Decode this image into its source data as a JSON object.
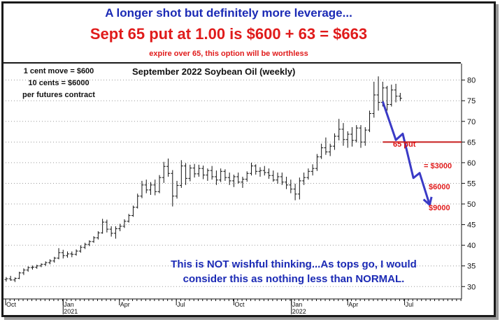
{
  "headline": {
    "line1": "A longer shot but definitely more leverage...",
    "line2": "Sept 65 put at 1.00 is $600 + 63 = $663",
    "line3": "expire over 65, this option will be worthless"
  },
  "notes": {
    "line1": "1 cent move = $600",
    "line2": "10 cents = $6000",
    "line3": "per futures contract"
  },
  "message": {
    "line1": "This is NOT wishful thinking...As tops go, I would",
    "line2": "consider this as nothing less than NORMAL."
  },
  "colors": {
    "headline_blue": "#1b2ab5",
    "headline_red": "#e01b1b",
    "bars": "#111111",
    "projection": "#3a3ac6",
    "put_line": "#c81e1e"
  },
  "chart_data": {
    "type": "ohlc",
    "title": "September 2022 Soybean Oil (weekly)",
    "xlabel": "",
    "ylabel": "",
    "ylim": [
      27,
      84
    ],
    "y_axis_side": "right",
    "y_ticks": [
      30,
      35,
      40,
      45,
      50,
      55,
      60,
      65,
      70,
      75,
      80
    ],
    "x_range": [
      "2020-10-01",
      "2022-09-30"
    ],
    "x_ticks": [
      {
        "date": "2020-10-01",
        "label": "Oct"
      },
      {
        "date": "2021-01-01",
        "label": "Jan"
      },
      {
        "date": "2021-04-01",
        "label": "Apr"
      },
      {
        "date": "2021-07-01",
        "label": "Jul"
      },
      {
        "date": "2021-10-01",
        "label": "Oct"
      },
      {
        "date": "2022-01-01",
        "label": "Jan"
      },
      {
        "date": "2022-04-01",
        "label": "Apr"
      },
      {
        "date": "2022-07-01",
        "label": "Jul"
      }
    ],
    "x_year_labels": [
      {
        "date": "2021-01-01",
        "label": "2021"
      },
      {
        "date": "2022-01-01",
        "label": "2022"
      }
    ],
    "series": [
      {
        "start": "2020-10-02",
        "interval_days": 7,
        "bars": [
          [
            31.7,
            32.3,
            31.2,
            31.9
          ],
          [
            31.9,
            32.6,
            31.4,
            31.6
          ],
          [
            31.6,
            32.2,
            31.1,
            32.0
          ],
          [
            32.0,
            33.6,
            31.8,
            33.3
          ],
          [
            33.3,
            34.4,
            32.8,
            34.0
          ],
          [
            34.0,
            34.9,
            33.6,
            34.6
          ],
          [
            34.6,
            35.1,
            34.1,
            34.7
          ],
          [
            34.7,
            35.3,
            34.3,
            35.0
          ],
          [
            35.0,
            35.6,
            34.7,
            35.4
          ],
          [
            35.4,
            36.1,
            35.0,
            35.8
          ],
          [
            35.8,
            36.6,
            35.4,
            36.2
          ],
          [
            36.2,
            37.2,
            35.8,
            36.9
          ],
          [
            36.9,
            39.3,
            36.6,
            38.2
          ],
          [
            38.2,
            38.9,
            36.8,
            37.5
          ],
          [
            37.5,
            38.5,
            37.0,
            37.9
          ],
          [
            37.9,
            38.5,
            37.1,
            37.8
          ],
          [
            37.8,
            39.0,
            37.5,
            38.6
          ],
          [
            38.6,
            40.0,
            38.2,
            39.5
          ],
          [
            39.5,
            40.6,
            39.1,
            40.2
          ],
          [
            40.2,
            41.2,
            39.8,
            40.9
          ],
          [
            40.9,
            42.2,
            40.6,
            41.8
          ],
          [
            41.8,
            43.4,
            41.4,
            43.0
          ],
          [
            43.0,
            46.4,
            42.8,
            45.6
          ],
          [
            45.6,
            46.2,
            43.1,
            43.9
          ],
          [
            43.9,
            44.6,
            42.1,
            42.9
          ],
          [
            42.9,
            44.6,
            41.6,
            44.0
          ],
          [
            44.0,
            45.2,
            43.4,
            44.6
          ],
          [
            44.6,
            46.3,
            44.2,
            45.8
          ],
          [
            45.8,
            47.6,
            45.5,
            47.2
          ],
          [
            47.2,
            49.6,
            46.9,
            49.2
          ],
          [
            49.2,
            52.5,
            48.9,
            51.9
          ],
          [
            51.9,
            55.6,
            51.4,
            54.6
          ],
          [
            54.6,
            55.9,
            52.6,
            53.4
          ],
          [
            53.4,
            55.3,
            52.2,
            54.6
          ],
          [
            54.6,
            55.9,
            52.1,
            53.0
          ],
          [
            53.0,
            57.0,
            52.6,
            56.4
          ],
          [
            56.4,
            60.2,
            55.1,
            59.1
          ],
          [
            59.1,
            61.0,
            56.6,
            57.4
          ],
          [
            57.4,
            58.2,
            49.4,
            51.9
          ],
          [
            51.9,
            55.6,
            51.3,
            54.5
          ],
          [
            54.5,
            60.6,
            53.9,
            59.2
          ],
          [
            59.2,
            59.9,
            54.6,
            56.2
          ],
          [
            56.2,
            59.5,
            55.5,
            58.7
          ],
          [
            58.7,
            59.7,
            56.4,
            57.3
          ],
          [
            57.3,
            59.5,
            56.6,
            58.6
          ],
          [
            58.6,
            59.3,
            56.0,
            57.0
          ],
          [
            57.0,
            58.6,
            55.6,
            58.1
          ],
          [
            58.1,
            59.2,
            55.9,
            56.6
          ],
          [
            56.6,
            58.1,
            54.6,
            55.8
          ],
          [
            55.8,
            58.6,
            55.3,
            57.9
          ],
          [
            57.9,
            58.4,
            55.6,
            56.4
          ],
          [
            56.4,
            57.6,
            54.6,
            55.6
          ],
          [
            55.6,
            57.1,
            54.1,
            56.6
          ],
          [
            56.6,
            57.6,
            54.9,
            55.3
          ],
          [
            55.3,
            56.6,
            53.9,
            56.0
          ],
          [
            56.0,
            57.9,
            55.4,
            57.4
          ],
          [
            57.4,
            60.0,
            56.9,
            59.2
          ],
          [
            59.2,
            59.6,
            57.1,
            57.9
          ],
          [
            57.9,
            58.9,
            56.6,
            58.1
          ],
          [
            58.1,
            59.2,
            56.9,
            57.6
          ],
          [
            57.6,
            58.6,
            56.1,
            56.9
          ],
          [
            56.9,
            58.1,
            55.4,
            55.8
          ],
          [
            55.8,
            57.6,
            54.9,
            56.6
          ],
          [
            56.6,
            57.6,
            54.6,
            55.3
          ],
          [
            55.3,
            56.6,
            53.6,
            54.6
          ],
          [
            54.6,
            55.9,
            52.6,
            53.6
          ],
          [
            53.6,
            54.9,
            50.9,
            52.4
          ],
          [
            52.4,
            56.4,
            51.1,
            55.6
          ],
          [
            55.6,
            57.6,
            54.6,
            56.4
          ],
          [
            56.4,
            58.6,
            55.9,
            57.9
          ],
          [
            57.9,
            59.6,
            56.9,
            58.6
          ],
          [
            58.6,
            62.1,
            58.0,
            61.4
          ],
          [
            61.4,
            64.6,
            60.9,
            63.6
          ],
          [
            63.6,
            66.1,
            61.9,
            62.6
          ],
          [
            62.6,
            64.6,
            61.6,
            64.0
          ],
          [
            64.0,
            67.1,
            63.1,
            66.4
          ],
          [
            66.4,
            70.6,
            65.4,
            68.1
          ],
          [
            68.1,
            69.6,
            64.1,
            65.6
          ],
          [
            65.6,
            67.6,
            63.6,
            66.9
          ],
          [
            66.9,
            68.6,
            63.9,
            65.4
          ],
          [
            65.4,
            69.1,
            64.9,
            68.4
          ],
          [
            68.4,
            69.1,
            63.6,
            65.0
          ],
          [
            65.0,
            68.6,
            64.1,
            67.9
          ],
          [
            67.9,
            72.6,
            67.4,
            71.9
          ],
          [
            71.9,
            79.6,
            70.9,
            76.4
          ],
          [
            76.4,
            80.9,
            72.6,
            74.6
          ],
          [
            74.6,
            79.6,
            73.6,
            78.1
          ],
          [
            78.1,
            78.6,
            72.6,
            74.1
          ],
          [
            74.1,
            78.9,
            73.6,
            77.6
          ],
          [
            77.6,
            79.1,
            74.6,
            76.1
          ],
          [
            76.1,
            76.9,
            74.9,
            75.6
          ]
        ]
      }
    ],
    "projection": {
      "name": "",
      "points": [
        {
          "date": "2022-05-27",
          "y": 74.8
        },
        {
          "date": "2022-06-17",
          "y": 65.5
        },
        {
          "date": "2022-06-28",
          "y": 67.0
        },
        {
          "date": "2022-07-15",
          "y": 56.3
        },
        {
          "date": "2022-07-25",
          "y": 57.5
        },
        {
          "date": "2022-08-10",
          "y": 49.8
        }
      ]
    },
    "annotations": [
      {
        "text": "65 put",
        "level": 65,
        "line_from": "2022-05-27",
        "line_to": "2022-09-30"
      },
      {
        "text": "= $3000",
        "level": 60
      },
      {
        "text": "$6000",
        "level": 55
      },
      {
        "text": "$9000",
        "level": 50
      }
    ]
  }
}
